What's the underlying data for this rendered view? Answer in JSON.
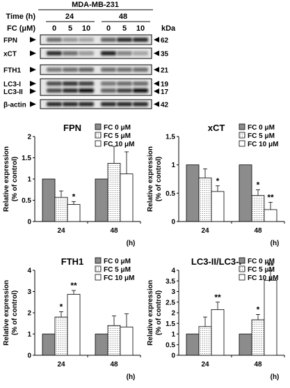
{
  "blot": {
    "cell_line": "MDA-MB-231",
    "time_label": "Time (h)",
    "time_groups": [
      "24",
      "48"
    ],
    "fc_label": "FC (μM)",
    "fc_doses": [
      "0",
      "5",
      "10",
      "0",
      "5",
      "10"
    ],
    "kda_label": "kDa",
    "rows": [
      {
        "name": "FPN",
        "kda": "62",
        "intensity": [
          0.55,
          0.35,
          0.3,
          0.6,
          0.85,
          0.85
        ]
      },
      {
        "name": "xCT",
        "kda": "35",
        "intensity": [
          0.85,
          0.55,
          0.35,
          0.9,
          0.45,
          0.3
        ]
      },
      {
        "name": "FTH1",
        "kda": "21",
        "intensity": [
          0.5,
          0.55,
          0.6,
          0.55,
          0.55,
          0.55
        ]
      },
      {
        "name": "β-actin",
        "kda": "42",
        "intensity": [
          0.85,
          0.85,
          0.85,
          0.85,
          0.85,
          0.85
        ]
      }
    ],
    "lc3": {
      "name_i": "LC3-I",
      "name_ii": "LC3-II",
      "kda_i": "19",
      "kda_ii": "17",
      "intensity_i": [
        0.7,
        0.8,
        0.75,
        0.5,
        0.55,
        0.55
      ],
      "intensity_ii": [
        0.7,
        0.85,
        0.95,
        0.6,
        0.75,
        0.95
      ]
    }
  },
  "chart_data": [
    {
      "type": "bar",
      "title": "FPN",
      "ylabel": "Relative expression (% of control)",
      "xlabel": "(h)",
      "categories": [
        "24",
        "48"
      ],
      "ylim": [
        0,
        2
      ],
      "yticks": [
        "0",
        "0.5",
        "1",
        "1.5",
        "2"
      ],
      "series": [
        {
          "name": "FC 0 μM",
          "values": [
            1,
            1
          ],
          "errors": [
            0,
            0
          ],
          "sig": [
            "",
            ""
          ]
        },
        {
          "name": "FC 5 μM",
          "values": [
            0.57,
            1.37
          ],
          "errors": [
            0.15,
            0.4
          ],
          "sig": [
            "",
            ""
          ]
        },
        {
          "name": "FC 10 μM",
          "values": [
            0.4,
            1.12
          ],
          "errors": [
            0.07,
            0.52
          ],
          "sig": [
            "*",
            ""
          ]
        }
      ]
    },
    {
      "type": "bar",
      "title": "xCT",
      "ylabel": "Relative expression (% of control)",
      "xlabel": "(h)",
      "categories": [
        "24",
        "48"
      ],
      "ylim": [
        0,
        1.5
      ],
      "yticks": [
        "0",
        "0.5",
        "1",
        "1.5"
      ],
      "series": [
        {
          "name": "FC 0 μM",
          "values": [
            1,
            1
          ],
          "errors": [
            0,
            0
          ],
          "sig": [
            "",
            ""
          ]
        },
        {
          "name": "FC 5 μM",
          "values": [
            0.77,
            0.46
          ],
          "errors": [
            0.16,
            0.1
          ],
          "sig": [
            "",
            "*"
          ]
        },
        {
          "name": "FC 10 μM",
          "values": [
            0.53,
            0.21
          ],
          "errors": [
            0.1,
            0.13
          ],
          "sig": [
            "*",
            "**"
          ]
        }
      ]
    },
    {
      "type": "bar",
      "title": "FTH1",
      "ylabel": "Relative expression (% of control)",
      "xlabel": "(h)",
      "categories": [
        "24",
        "48"
      ],
      "ylim": [
        0,
        4
      ],
      "yticks": [
        "0",
        "1",
        "2",
        "3",
        "4"
      ],
      "series": [
        {
          "name": "FC 0 μM",
          "values": [
            1,
            1
          ],
          "errors": [
            0,
            0
          ],
          "sig": [
            "",
            ""
          ]
        },
        {
          "name": "FC 5 μM",
          "values": [
            1.8,
            1.4
          ],
          "errors": [
            0.25,
            0.45
          ],
          "sig": [
            "*",
            ""
          ]
        },
        {
          "name": "FC 10 μM",
          "values": [
            2.87,
            1.33
          ],
          "errors": [
            0.18,
            0.62
          ],
          "sig": [
            "**",
            ""
          ]
        }
      ]
    },
    {
      "type": "bar",
      "title": "LC3-II/LC3-I",
      "ylabel": "Relative expression (% of control)",
      "xlabel": "(h)",
      "categories": [
        "24",
        "48"
      ],
      "ylim": [
        0,
        4
      ],
      "yticks": [
        "0",
        "0.5",
        "1",
        "1.5",
        "2",
        "2.5",
        "3",
        "3.5",
        "4"
      ],
      "series": [
        {
          "name": "FC 0 μM",
          "values": [
            1,
            1
          ],
          "errors": [
            0,
            0
          ],
          "sig": [
            "",
            ""
          ]
        },
        {
          "name": "FC 5 μM",
          "values": [
            1.35,
            1.67
          ],
          "errors": [
            0.45,
            0.25
          ],
          "sig": [
            "",
            "*"
          ]
        },
        {
          "name": "FC 10 μM",
          "values": [
            2.15,
            3.53
          ],
          "errors": [
            0.35,
            0.45
          ],
          "sig": [
            "**",
            "**"
          ]
        }
      ]
    }
  ]
}
